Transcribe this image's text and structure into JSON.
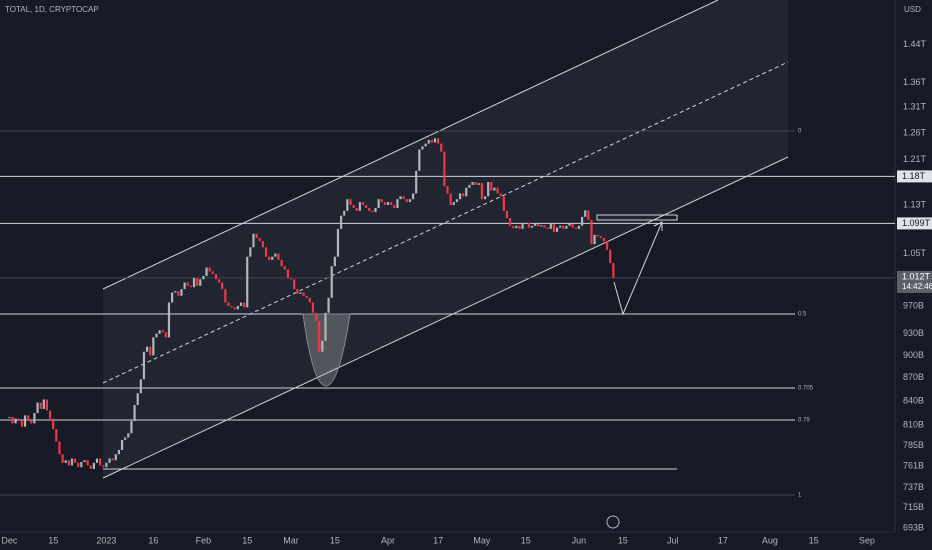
{
  "chart_data": {
    "type": "candlestick",
    "title": "TOTAL, 1D, CRYPTOCAP",
    "y_axis_label": "USD",
    "log_scale": true,
    "up_color": "#b2b5be",
    "down_color": "#f23645",
    "xlim": [
      -3,
      283
    ],
    "ylim": [
      689,
      1541
    ],
    "xticks": [
      {
        "value": 0,
        "label": "Dec"
      },
      {
        "value": 14,
        "label": "15"
      },
      {
        "value": 31,
        "label": "2023"
      },
      {
        "value": 46,
        "label": "16"
      },
      {
        "value": 62,
        "label": "Feb"
      },
      {
        "value": 76,
        "label": "15"
      },
      {
        "value": 90,
        "label": "Mar"
      },
      {
        "value": 104,
        "label": "15"
      },
      {
        "value": 121,
        "label": "Apr"
      },
      {
        "value": 137,
        "label": "17"
      },
      {
        "value": 151,
        "label": "May"
      },
      {
        "value": 165,
        "label": "15"
      },
      {
        "value": 182,
        "label": "Jun"
      },
      {
        "value": 196,
        "label": "15"
      },
      {
        "value": 212,
        "label": "Jul"
      },
      {
        "value": 228,
        "label": "17"
      },
      {
        "value": 243,
        "label": "Aug"
      },
      {
        "value": 257,
        "label": "15"
      },
      {
        "value": 274,
        "label": "Sep"
      }
    ],
    "yticks": [
      {
        "value": 1440,
        "label": "1.44T"
      },
      {
        "value": 1360,
        "label": "1.36T"
      },
      {
        "value": 1310,
        "label": "1.31T"
      },
      {
        "value": 1260,
        "label": "1.26T"
      },
      {
        "value": 1210,
        "label": "1.21T"
      },
      {
        "value": 1130,
        "label": "1.13T"
      },
      {
        "value": 1050,
        "label": "1.05T"
      },
      {
        "value": 970,
        "label": "970B"
      },
      {
        "value": 930,
        "label": "930B"
      },
      {
        "value": 900,
        "label": "900B"
      },
      {
        "value": 870,
        "label": "870B"
      },
      {
        "value": 840,
        "label": "840B"
      },
      {
        "value": 810,
        "label": "810B"
      },
      {
        "value": 785,
        "label": "785B"
      },
      {
        "value": 761,
        "label": "761B"
      },
      {
        "value": 737,
        "label": "737B"
      },
      {
        "value": 715,
        "label": "715B"
      },
      {
        "value": 693,
        "label": "693B"
      }
    ],
    "price_lines": [
      {
        "value": 1180,
        "label": "1.18T"
      },
      {
        "value": 1099,
        "label": "1.099T"
      }
    ],
    "last_price": {
      "value": 1012,
      "label": "1.012T"
    },
    "countdown": "14:42:46",
    "fib_labels": [
      "0",
      "0.5",
      "0.705",
      "0.79",
      "1"
    ],
    "x": [
      0,
      1,
      2,
      3,
      4,
      5,
      6,
      7,
      8,
      9,
      10,
      11,
      12,
      13,
      14,
      15,
      16,
      17,
      18,
      19,
      20,
      21,
      22,
      23,
      24,
      25,
      26,
      27,
      28,
      29,
      30,
      31,
      32,
      33,
      34,
      35,
      36,
      37,
      38,
      39,
      40,
      41,
      42,
      43,
      44,
      45,
      46,
      47,
      48,
      49,
      50,
      51,
      52,
      53,
      54,
      55,
      56,
      57,
      58,
      59,
      60,
      61,
      62,
      63,
      64,
      65,
      66,
      67,
      68,
      69,
      70,
      71,
      72,
      73,
      74,
      75,
      76,
      77,
      78,
      79,
      80,
      81,
      82,
      83,
      84,
      85,
      86,
      87,
      88,
      89,
      90,
      91,
      92,
      93,
      94,
      95,
      96,
      97,
      98,
      99,
      100,
      101,
      102,
      103,
      104,
      105,
      106,
      107,
      108,
      109,
      110,
      111,
      112,
      113,
      114,
      115,
      116,
      117,
      118,
      119,
      120,
      121,
      122,
      123,
      124,
      125,
      126,
      127,
      128,
      129,
      130,
      131,
      132,
      133,
      134,
      135,
      136,
      137,
      138,
      139,
      140,
      141,
      142,
      143,
      144,
      145,
      146,
      147,
      148,
      149,
      150,
      151,
      152,
      153,
      154,
      155,
      156,
      157,
      158,
      159,
      160,
      161,
      162,
      163,
      164,
      165,
      166,
      167,
      168,
      169,
      170,
      171,
      172,
      173,
      174,
      175,
      176,
      177,
      178,
      179,
      180,
      181,
      182,
      183,
      184,
      185,
      186,
      187,
      188,
      189,
      190,
      191,
      192,
      193
    ],
    "close": [
      820,
      812,
      818,
      815,
      808,
      822,
      815,
      812,
      825,
      838,
      830,
      842,
      828,
      818,
      805,
      790,
      775,
      765,
      768,
      762,
      770,
      765,
      760,
      766,
      768,
      762,
      758,
      765,
      770,
      762,
      760,
      765,
      770,
      768,
      775,
      780,
      792,
      795,
      800,
      815,
      835,
      850,
      868,
      905,
      912,
      900,
      925,
      930,
      935,
      932,
      925,
      975,
      990,
      992,
      985,
      995,
      1005,
      1000,
      998,
      1012,
      1000,
      1010,
      1015,
      1028,
      1022,
      1018,
      1010,
      1005,
      995,
      975,
      970,
      968,
      965,
      970,
      975,
      968,
      1045,
      1060,
      1082,
      1075,
      1070,
      1060,
      1045,
      1040,
      1045,
      1050,
      1040,
      1030,
      1025,
      1012,
      1010,
      995,
      988,
      990,
      985,
      982,
      975,
      960,
      948,
      905,
      920,
      960,
      982,
      1030,
      1045,
      1090,
      1112,
      1120,
      1140,
      1130,
      1125,
      1120,
      1135,
      1130,
      1125,
      1120,
      1118,
      1125,
      1140,
      1135,
      1130,
      1135,
      1130,
      1125,
      1140,
      1145,
      1140,
      1135,
      1140,
      1150,
      1190,
      1229,
      1235,
      1240,
      1247,
      1242,
      1250,
      1240,
      1225,
      1163,
      1150,
      1130,
      1135,
      1140,
      1150,
      1145,
      1160,
      1165,
      1170,
      1165,
      1168,
      1140,
      1145,
      1170,
      1155,
      1160,
      1150,
      1145,
      1120,
      1108,
      1095,
      1091,
      1095,
      1090,
      1098,
      1100,
      1092,
      1095,
      1098,
      1094,
      1096,
      1092,
      1090,
      1098,
      1085,
      1092,
      1095,
      1090,
      1095,
      1098,
      1092,
      1090,
      1095,
      1110,
      1121,
      1105,
      1065,
      1080,
      1078,
      1075,
      1070,
      1056,
      1035,
      1012
    ]
  }
}
